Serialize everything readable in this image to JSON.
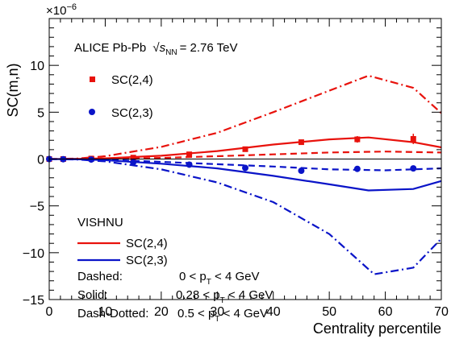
{
  "chart_data": {
    "type": "line",
    "xlabel": "Centrality percentile",
    "ylabel": "SC(m,n)",
    "y_multiplier_label": "×10",
    "y_multiplier_exp": "−6",
    "xlim": [
      0,
      70
    ],
    "ylim": [
      -15,
      15
    ],
    "x_ticks": [
      0,
      10,
      20,
      30,
      40,
      50,
      60,
      70
    ],
    "y_ticks": [
      -15,
      -10,
      -5,
      0,
      5,
      10
    ],
    "x_tick_labels": [
      "0",
      "10",
      "20",
      "30",
      "40",
      "50",
      "60",
      "70"
    ],
    "y_tick_labels": [
      "−15",
      "−10",
      "−5",
      "0",
      "5",
      "10"
    ],
    "annotations": {
      "experiment_prefix": "ALICE Pb-Pb",
      "energy_symbol": "√",
      "energy_s": "s",
      "energy_sub": "NN",
      "energy_value": "= 2.76 TeV",
      "model": "VISHNU",
      "legend_dashed": "Dashed:",
      "legend_solid": "Solid:",
      "legend_dashdot": "Dash-Dotted:",
      "range_dashed": [
        "0 < p",
        "T",
        " < 4 GeV"
      ],
      "range_solid": [
        "0.28 < p",
        "T",
        " < 4 GeV"
      ],
      "range_dashdot": [
        "0.5 < p",
        "T",
        " < 4 GeV"
      ]
    },
    "data_series": [
      {
        "name": "SC(2,4)",
        "marker": "square",
        "color": "#e8120c",
        "points": [
          {
            "x": 0,
            "y": 0.0,
            "err": 0.05
          },
          {
            "x": 2.5,
            "y": 0.0,
            "err": 0.05
          },
          {
            "x": 7.5,
            "y": 0.05,
            "err": 0.05
          },
          {
            "x": 15,
            "y": 0.15,
            "err": 0.05
          },
          {
            "x": 25,
            "y": 0.5,
            "err": 0.15
          },
          {
            "x": 35,
            "y": 1.05,
            "err": 0.2
          },
          {
            "x": 45,
            "y": 1.8,
            "err": 0.25
          },
          {
            "x": 55,
            "y": 2.1,
            "err": 0.35
          },
          {
            "x": 65,
            "y": 2.15,
            "err": 0.55
          }
        ]
      },
      {
        "name": "SC(2,3)",
        "marker": "circle",
        "color": "#0a14c8",
        "points": [
          {
            "x": 0,
            "y": 0.0
          },
          {
            "x": 2.5,
            "y": -0.02
          },
          {
            "x": 7.5,
            "y": -0.05
          },
          {
            "x": 15,
            "y": -0.35
          },
          {
            "x": 25,
            "y": -0.6
          },
          {
            "x": 35,
            "y": -0.95
          },
          {
            "x": 45,
            "y": -1.25
          },
          {
            "x": 55,
            "y": -1.05
          },
          {
            "x": 65,
            "y": -1.0
          }
        ]
      }
    ],
    "model_curves": [
      {
        "label": "SC(2,4)",
        "style": "solid",
        "color": "#e8120c",
        "x": [
          0,
          5,
          10,
          20,
          30,
          40,
          50,
          57,
          65,
          70
        ],
        "y": [
          0,
          0.02,
          0.08,
          0.35,
          0.85,
          1.55,
          2.1,
          2.3,
          1.8,
          1.25
        ]
      },
      {
        "label": "SC(2,4)",
        "style": "dashed",
        "color": "#e8120c",
        "x": [
          0,
          5,
          10,
          20,
          30,
          40,
          50,
          60,
          70
        ],
        "y": [
          0,
          0.01,
          0.03,
          0.12,
          0.3,
          0.5,
          0.7,
          0.8,
          0.7
        ]
      },
      {
        "label": "SC(2,4)",
        "style": "dashdot",
        "color": "#e8120c",
        "x": [
          0,
          5,
          10,
          20,
          30,
          40,
          50,
          57,
          65,
          70
        ],
        "y": [
          0,
          0.05,
          0.3,
          1.3,
          2.8,
          5.0,
          7.3,
          8.9,
          7.6,
          4.9
        ]
      },
      {
        "label": "SC(2,3)",
        "style": "solid",
        "color": "#0a14c8",
        "x": [
          0,
          5,
          10,
          20,
          30,
          40,
          50,
          57,
          65,
          70
        ],
        "y": [
          0,
          -0.03,
          -0.12,
          -0.5,
          -1.0,
          -1.8,
          -2.7,
          -3.35,
          -3.2,
          -2.35
        ]
      },
      {
        "label": "SC(2,3)",
        "style": "dashed",
        "color": "#0a14c8",
        "x": [
          0,
          5,
          10,
          20,
          30,
          40,
          50,
          60,
          70
        ],
        "y": [
          0,
          -0.02,
          -0.07,
          -0.3,
          -0.55,
          -0.8,
          -1.1,
          -1.2,
          -1.0
        ]
      },
      {
        "label": "SC(2,3)",
        "style": "dashdot",
        "color": "#0a14c8",
        "x": [
          0,
          5,
          10,
          20,
          30,
          40,
          50,
          58,
          65,
          70
        ],
        "y": [
          0,
          -0.05,
          -0.25,
          -1.1,
          -2.5,
          -4.6,
          -8.0,
          -12.3,
          -11.6,
          -8.5
        ]
      }
    ],
    "legend": {
      "data_position": "top-left",
      "model_position": "bottom-left",
      "model_entries": [
        {
          "label": "SC(2,4)",
          "color": "#e8120c"
        },
        {
          "label": "SC(2,3)",
          "color": "#0a14c8"
        }
      ]
    },
    "grid": false
  }
}
